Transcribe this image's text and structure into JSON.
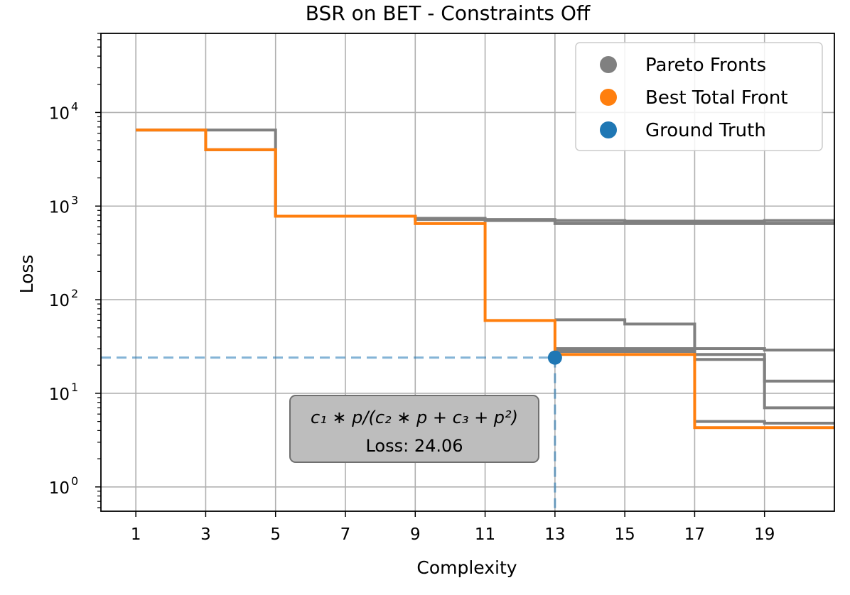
{
  "chart_data": {
    "type": "line",
    "title": "BSR on BET - Constraints Off",
    "xlabel": "Complexity",
    "ylabel": "Loss",
    "xlim": [
      0,
      21
    ],
    "ylim": [
      0.55,
      70000
    ],
    "yscale": "log",
    "grid": true,
    "xticks": [
      1,
      3,
      5,
      7,
      9,
      11,
      13,
      15,
      17,
      19
    ],
    "yticks": [
      {
        "value": 1,
        "base": "10",
        "exp": "0"
      },
      {
        "value": 10,
        "base": "10",
        "exp": "1"
      },
      {
        "value": 100,
        "base": "10",
        "exp": "2"
      },
      {
        "value": 1000,
        "base": "10",
        "exp": "3"
      },
      {
        "value": 10000,
        "base": "10",
        "exp": "4"
      }
    ],
    "colors": {
      "pareto": "#808080",
      "best": "#ff7f0e",
      "truth": "#1f77b4"
    },
    "legend": {
      "position": "top-right",
      "entries": [
        {
          "label": "Pareto Fronts",
          "color": "#808080"
        },
        {
          "label": "Best Total Front",
          "color": "#ff7f0e"
        },
        {
          "label": "Ground Truth",
          "color": "#1f77b4"
        }
      ]
    },
    "series": [
      {
        "role": "pareto",
        "x": [
          1,
          3,
          5,
          9,
          11,
          13,
          15,
          17,
          19,
          21
        ],
        "y": [
          6500,
          6500,
          780,
          740,
          700,
          700,
          690,
          690,
          700,
          700
        ]
      },
      {
        "role": "pareto",
        "x": [
          1,
          3,
          5,
          9,
          13,
          21
        ],
        "y": [
          6500,
          4000,
          780,
          720,
          650,
          650
        ]
      },
      {
        "role": "pareto",
        "x": [
          13,
          15,
          17,
          19,
          21
        ],
        "y": [
          61,
          55,
          30,
          29,
          29
        ]
      },
      {
        "role": "pareto",
        "x": [
          13,
          15,
          17,
          19,
          21
        ],
        "y": [
          30,
          30,
          26,
          7,
          7
        ]
      },
      {
        "role": "pareto",
        "x": [
          13,
          17,
          19,
          21
        ],
        "y": [
          28,
          23,
          13.5,
          13.5
        ]
      },
      {
        "role": "pareto",
        "x": [
          17,
          19,
          21
        ],
        "y": [
          5,
          4.8,
          4.8
        ]
      },
      {
        "role": "best",
        "x": [
          1,
          3,
          5,
          9,
          11,
          13,
          17,
          21
        ],
        "y": [
          6500,
          4000,
          780,
          650,
          60,
          26,
          4.3,
          4.3
        ]
      }
    ],
    "ground_truth": {
      "x": 13,
      "y": 24.06
    },
    "annotation": {
      "expr_prefix": "c",
      "expression": "c₁ ∗ p/(c₂ ∗ p + c₃ + p²)",
      "loss_text": "Loss: 24.06"
    }
  }
}
